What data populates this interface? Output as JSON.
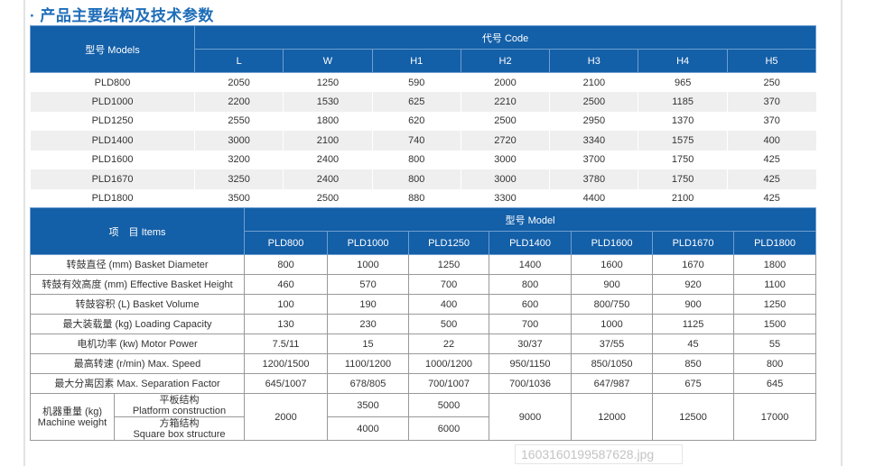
{
  "title": "· 产品主要结构及技术参数",
  "watermark": "1603160199587628.jpg",
  "table1": {
    "model_header": "型号 Models",
    "code_header": "代号 Code",
    "columns": [
      "L",
      "W",
      "H1",
      "H2",
      "H3",
      "H4",
      "H5"
    ],
    "rows": [
      [
        "PLD800",
        "2050",
        "1250",
        "590",
        "2000",
        "2100",
        "965",
        "250"
      ],
      [
        "PLD1000",
        "2200",
        "1530",
        "625",
        "2210",
        "2500",
        "1185",
        "370"
      ],
      [
        "PLD1250",
        "2550",
        "1800",
        "620",
        "2500",
        "2950",
        "1370",
        "370"
      ],
      [
        "PLD1400",
        "3000",
        "2100",
        "740",
        "2720",
        "3340",
        "1575",
        "400"
      ],
      [
        "PLD1600",
        "3200",
        "2400",
        "800",
        "3000",
        "3700",
        "1750",
        "425"
      ],
      [
        "PLD1670",
        "3250",
        "2400",
        "800",
        "3000",
        "3780",
        "1750",
        "425"
      ],
      [
        "PLD1800",
        "3500",
        "2500",
        "880",
        "3300",
        "4400",
        "2100",
        "425"
      ]
    ]
  },
  "table2": {
    "items_header": "项　目 Items",
    "model_header": "型号 Model",
    "columns": [
      "PLD800",
      "PLD1000",
      "PLD1250",
      "PLD1400",
      "PLD1600",
      "PLD1670",
      "PLD1800"
    ],
    "rows": [
      [
        "转鼓直径 (mm) Basket Diameter",
        "800",
        "1000",
        "1250",
        "1400",
        "1600",
        "1670",
        "1800"
      ],
      [
        "转鼓有效高度 (mm) Effective Basket Height",
        "460",
        "570",
        "700",
        "800",
        "900",
        "920",
        "1100"
      ],
      [
        "转鼓容积 (L) Basket Volume",
        "100",
        "190",
        "400",
        "600",
        "800/750",
        "900",
        "1250"
      ],
      [
        "最大装载量 (kg) Loading Capacity",
        "130",
        "230",
        "500",
        "700",
        "1000",
        "1125",
        "1500"
      ],
      [
        "电机功率 (kw) Motor Power",
        "7.5/11",
        "15",
        "22",
        "30/37",
        "37/55",
        "45",
        "55"
      ],
      [
        "最高转速 (r/min) Max. Speed",
        "1200/1500",
        "1100/1200",
        "1000/1200",
        "950/1150",
        "850/1050",
        "850",
        "800"
      ],
      [
        "最大分离因素 Max. Separation Factor",
        "645/1007",
        "678/805",
        "700/1007",
        "700/1036",
        "647/987",
        "675",
        "645"
      ]
    ],
    "weight": {
      "label_cn": "机器重量 (kg)",
      "label_en": "Machine weight",
      "platform_cn": "平板结构",
      "platform_en": "Platform construction",
      "box_cn": "方箱结构",
      "box_en": "Square box structure",
      "pld800": "2000",
      "pld1000_platform": "3500",
      "pld1000_box": "4000",
      "pld1250_platform": "5000",
      "pld1250_box": "6000",
      "pld1400": "9000",
      "pld1600": "12000",
      "pld1670": "12500",
      "pld1800": "17000"
    }
  }
}
